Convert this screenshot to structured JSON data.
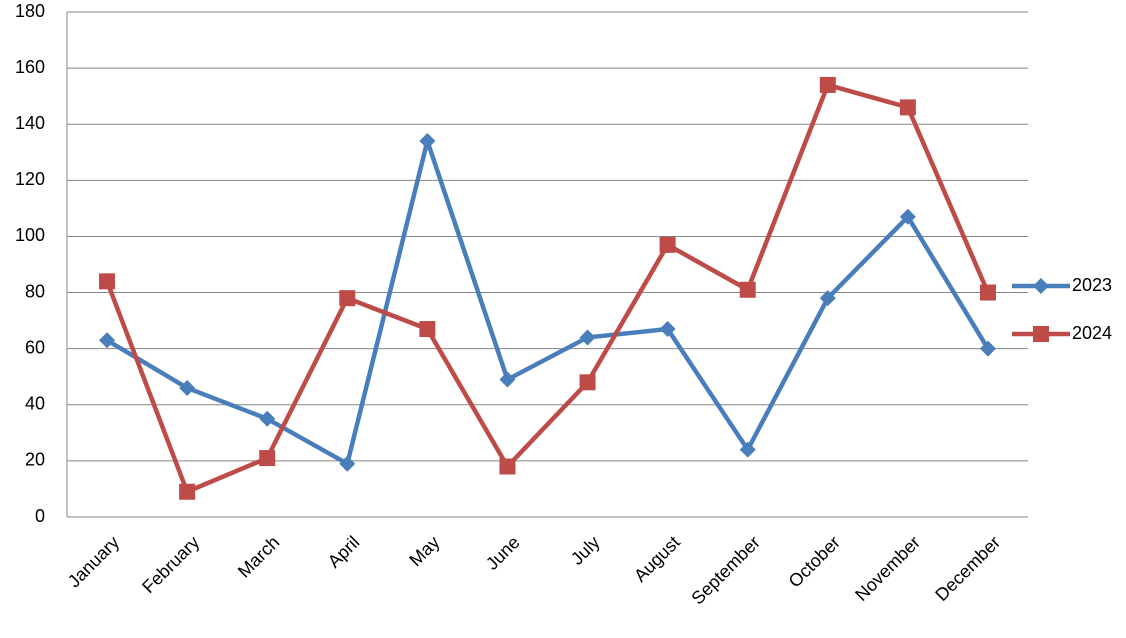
{
  "chart_data": {
    "type": "line",
    "categories": [
      "January",
      "February",
      "March",
      "April",
      "May",
      "June",
      "July",
      "August",
      "September",
      "October",
      "November",
      "December"
    ],
    "series": [
      {
        "name": "2023",
        "color": "#4a7ebb",
        "marker": "diamond",
        "values": [
          63,
          46,
          35,
          19,
          134,
          49,
          64,
          67,
          24,
          78,
          107,
          60
        ]
      },
      {
        "name": "2024",
        "color": "#be4b48",
        "marker": "square",
        "values": [
          84,
          9,
          21,
          78,
          67,
          18,
          48,
          97,
          81,
          154,
          146,
          80
        ]
      }
    ],
    "ylim": [
      0,
      180
    ],
    "yticks": [
      0,
      20,
      40,
      60,
      80,
      100,
      120,
      140,
      160,
      180
    ],
    "grid": true,
    "legend": "right"
  }
}
